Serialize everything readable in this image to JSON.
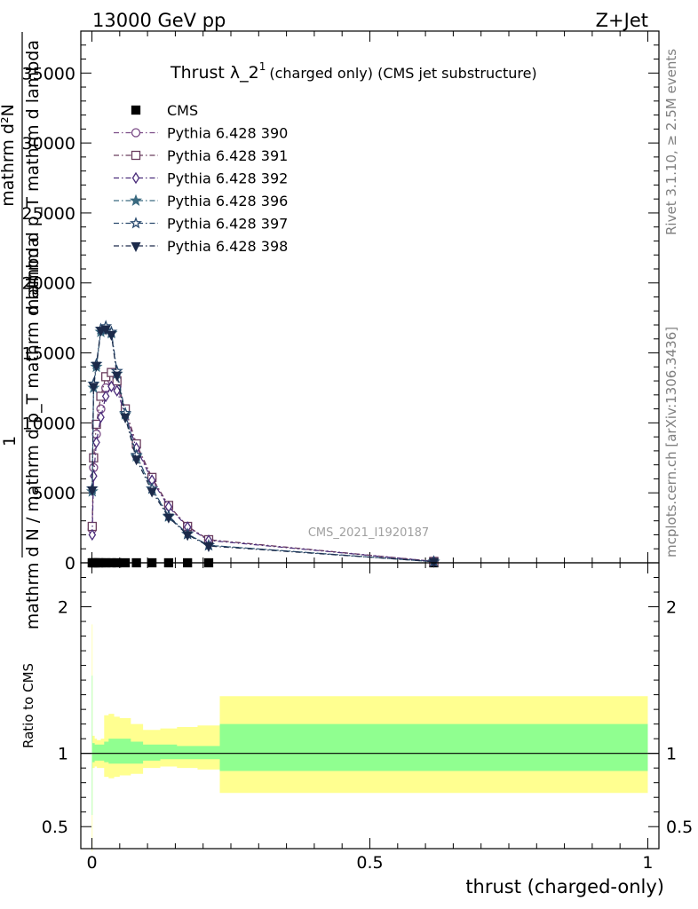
{
  "header": {
    "left_label": "13000 GeV pp",
    "right_label": "Z+Jet"
  },
  "side_labels": {
    "rivet": "Rivet 3.1.10, ≥ 2.5M events",
    "mcplots": "mcplots.cern.ch [arXiv:1306.3436]"
  },
  "watermark": "CMS_2021_I1920187",
  "colors": {
    "cms": "#000000",
    "p390": "#7a4a86",
    "p391": "#6a3d5e",
    "p392": "#4a2c7a",
    "p396": "#3a6a80",
    "p397": "#2a4a6e",
    "p398": "#1c2a4a",
    "band_stat": "#90ff90",
    "band_total": "#ffff90"
  },
  "chart_data": [
    {
      "type": "line",
      "title": "Thrust λ_2¹ (charged only) (CMS jet substructure)",
      "title_main": "Thrust λ_2",
      "title_sup": "1",
      "title_rest": "(charged only) (CMS jet substructure)",
      "ylabel_parts": [
        "1",
        "mathrm d N / mathrm d p_T mathrm d lambda",
        "mathrm d²N",
        "mathrm d p_T mathrm d lambda"
      ],
      "xlim": [
        -0.02,
        1.02
      ],
      "ylim": [
        0,
        38000
      ],
      "yticks": [
        0,
        5000,
        10000,
        15000,
        20000,
        25000,
        30000,
        35000
      ],
      "ytick_labels": [
        "0",
        "5000",
        "10000",
        "15000",
        "20000",
        "25000",
        "30000",
        "35000"
      ],
      "legend_position": "top-left",
      "series": [
        {
          "name": "CMS",
          "key": "cms",
          "marker": "square-filled",
          "x": [
            0.0005,
            0.0025,
            0.006,
            0.012,
            0.0175,
            0.025,
            0.035,
            0.045,
            0.06,
            0.08,
            0.108,
            0.138,
            0.172,
            0.21,
            0.615
          ],
          "y": [
            0,
            0,
            0,
            0,
            0,
            0,
            0,
            0,
            0,
            0,
            0,
            0,
            0,
            0,
            0
          ]
        },
        {
          "name": "Pythia 6.428 390",
          "key": "p390",
          "marker": "circle-open",
          "x": [
            0.0005,
            0.003,
            0.008,
            0.016,
            0.025,
            0.035,
            0.045,
            0.06,
            0.08,
            0.108,
            0.138,
            0.172,
            0.21,
            0.615
          ],
          "y": [
            2400,
            6800,
            9200,
            11000,
            12500,
            13100,
            12600,
            10900,
            8300,
            6000,
            4100,
            2600,
            1650,
            100
          ]
        },
        {
          "name": "Pythia 6.428 391",
          "key": "p391",
          "marker": "square-open",
          "x": [
            0.0005,
            0.003,
            0.008,
            0.016,
            0.025,
            0.035,
            0.045,
            0.06,
            0.08,
            0.108,
            0.138,
            0.172,
            0.21,
            0.615
          ],
          "y": [
            2600,
            7500,
            9900,
            11900,
            13300,
            13600,
            13000,
            11000,
            8500,
            6100,
            4100,
            2600,
            1650,
            100
          ]
        },
        {
          "name": "Pythia 6.428 392",
          "key": "p392",
          "marker": "diamond-open",
          "x": [
            0.0005,
            0.003,
            0.008,
            0.016,
            0.025,
            0.035,
            0.045,
            0.06,
            0.08,
            0.108,
            0.138,
            0.172,
            0.21,
            0.615
          ],
          "y": [
            2000,
            6200,
            8600,
            10400,
            11900,
            12600,
            12300,
            10600,
            8200,
            5900,
            4000,
            2550,
            1600,
            100
          ]
        },
        {
          "name": "Pythia 6.428 396",
          "key": "p396",
          "marker": "star-filled",
          "x": [
            0.0005,
            0.003,
            0.008,
            0.016,
            0.025,
            0.035,
            0.045,
            0.06,
            0.08,
            0.108,
            0.138,
            0.172,
            0.21,
            0.615
          ],
          "y": [
            5100,
            12500,
            14000,
            16500,
            16600,
            16400,
            13500,
            10600,
            7600,
            5300,
            3300,
            2050,
            1250,
            80
          ]
        },
        {
          "name": "Pythia 6.428 397",
          "key": "p397",
          "marker": "star-open",
          "x": [
            0.0005,
            0.003,
            0.008,
            0.016,
            0.025,
            0.035,
            0.045,
            0.06,
            0.08,
            0.108,
            0.138,
            0.172,
            0.21,
            0.615
          ],
          "y": [
            5300,
            12800,
            14200,
            16700,
            16900,
            16500,
            13700,
            10700,
            7700,
            5300,
            3350,
            2050,
            1250,
            80
          ]
        },
        {
          "name": "Pythia 6.428 398",
          "key": "p398",
          "marker": "triangle-down-filled",
          "x": [
            0.0005,
            0.003,
            0.008,
            0.016,
            0.025,
            0.035,
            0.045,
            0.06,
            0.08,
            0.108,
            0.138,
            0.172,
            0.21,
            0.615
          ],
          "y": [
            5200,
            12600,
            14100,
            16600,
            16700,
            16300,
            13400,
            10400,
            7400,
            5100,
            3250,
            2000,
            1200,
            80
          ]
        }
      ]
    },
    {
      "type": "area",
      "ylabel": "Ratio to CMS",
      "xlabel": "thrust (charged-only)",
      "xlim": [
        -0.02,
        1.02
      ],
      "ylim": [
        0.35,
        2.3
      ],
      "yticks": [
        0.5,
        1,
        2
      ],
      "ytick_labels": [
        "0.5",
        "1",
        "2"
      ],
      "xticks": [
        0,
        0.5,
        1
      ],
      "xtick_labels": [
        "0",
        "0.5",
        "1"
      ],
      "reference_line": 1,
      "bands": {
        "edges": [
          0,
          0.001,
          0.005,
          0.009,
          0.016,
          0.022,
          0.03,
          0.04,
          0.05,
          0.07,
          0.092,
          0.123,
          0.153,
          0.19,
          0.23,
          1.0
        ],
        "stat_lo": [
          0.58,
          0.94,
          0.95,
          0.95,
          0.95,
          0.94,
          0.93,
          0.93,
          0.93,
          0.93,
          0.95,
          0.96,
          0.96,
          0.96,
          0.88
        ],
        "stat_hi": [
          1.53,
          1.07,
          1.06,
          1.06,
          1.06,
          1.08,
          1.1,
          1.1,
          1.1,
          1.08,
          1.06,
          1.06,
          1.05,
          1.05,
          1.2
        ],
        "total_lo": [
          0.33,
          0.9,
          0.91,
          0.9,
          0.9,
          0.84,
          0.83,
          0.84,
          0.85,
          0.86,
          0.9,
          0.91,
          0.9,
          0.89,
          0.73
        ],
        "total_hi": [
          1.88,
          1.12,
          1.1,
          1.09,
          1.1,
          1.26,
          1.27,
          1.25,
          1.24,
          1.2,
          1.16,
          1.17,
          1.18,
          1.19,
          1.39
        ]
      }
    }
  ]
}
